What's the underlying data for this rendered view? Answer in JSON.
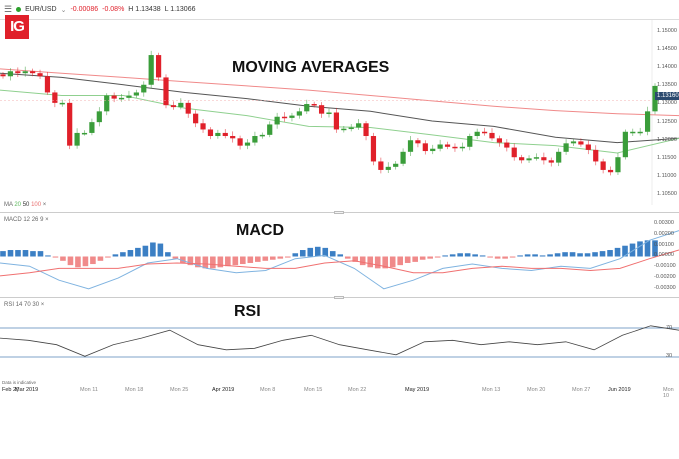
{
  "header": {
    "symbol": "EUR/USD",
    "change": "-0.00086",
    "change_pct": "-0.08%",
    "high": "H 1.13438",
    "low": "L 1.13066",
    "menu_icon": "hamburger-icon",
    "status_color": "#2ca02c"
  },
  "logo": "IG",
  "titles": {
    "ma": "MOVING AVERAGES",
    "macd": "MACD",
    "rsi": "RSI"
  },
  "legends": {
    "ma": {
      "label": "MA",
      "p1": "20",
      "p2": "50",
      "p3": "100",
      "close": "×"
    },
    "macd": {
      "label": "MACD",
      "p1": "12",
      "p2": "26",
      "p3": "9",
      "close": "×"
    },
    "rsi": {
      "label": "RSI",
      "p1": "14",
      "p2": "70",
      "p3": "30",
      "close": "×"
    }
  },
  "price_axis": [
    "1.15000",
    "1.14500",
    "1.14000",
    "1.13500",
    "1.13000",
    "1.12500",
    "1.12000",
    "1.11500",
    "1.11000",
    "1.10500"
  ],
  "current_price": "1.13160",
  "macd_axis": [
    "0.00300",
    "0.00200",
    "0.00100",
    "0.00000",
    "-0.00100",
    "-0.00200",
    "-0.00300"
  ],
  "rsi_axis": [
    "70",
    "30"
  ],
  "footer": {
    "note": "Data is indicative",
    "dates": [
      "Feb 2(",
      "Mar 2019",
      "Mon 11",
      "Mon 18",
      "Mon 25",
      "Apr 2019",
      "Mon 8",
      "Mon 15",
      "Mon 22",
      "May 2019",
      "Mon 13",
      "Mon 20",
      "Mon 27",
      "Jun 2019",
      "Mon 10"
    ]
  },
  "colors": {
    "up": "#3a9d3a",
    "down": "#e0202a",
    "ma20": "#8fd08f",
    "ma50": "#555555",
    "ma100": "#f08a8a",
    "hist_pos": "#3b7fc4",
    "hist_neg": "#f08a8a",
    "macd": "#7fb3e0",
    "signal": "#f07070",
    "rsi": "#444444",
    "rsi_lines": "#7fa3c8"
  },
  "chart_data": {
    "type": "candlestick",
    "price_range": [
      1.1045,
      1.1525
    ],
    "closes": [
      1.1379,
      1.1392,
      1.1387,
      1.1392,
      1.1387,
      1.1379,
      1.1337,
      1.131,
      1.131,
      1.1199,
      1.1232,
      1.1232,
      1.126,
      1.1288,
      1.1329,
      1.1321,
      1.1323,
      1.1329,
      1.1337,
      1.1357,
      1.1434,
      1.1376,
      1.1304,
      1.1299,
      1.131,
      1.1282,
      1.1257,
      1.1241,
      1.1224,
      1.1232,
      1.1224,
      1.1218,
      1.1199,
      1.1207,
      1.1224,
      1.1227,
      1.1254,
      1.1274,
      1.1271,
      1.1277,
      1.1288,
      1.1307,
      1.1304,
      1.1282,
      1.1285,
      1.1241,
      1.1243,
      1.1246,
      1.1257,
      1.1224,
      1.1158,
      1.1136,
      1.1144,
      1.1152,
      1.1183,
      1.1213,
      1.1205,
      1.1185,
      1.1191,
      1.1202,
      1.1196,
      1.1194,
      1.1196,
      1.1224,
      1.1235,
      1.1232,
      1.1218,
      1.1207,
      1.1194,
      1.1169,
      1.1161,
      1.1166,
      1.1169,
      1.1161,
      1.1155,
      1.1183,
      1.1205,
      1.121,
      1.1202,
      1.1188,
      1.1158,
      1.1136,
      1.113,
      1.1169,
      1.1235,
      1.1235,
      1.1235,
      1.1288,
      1.1354
    ],
    "ma20": [
      1.1343,
      1.1329,
      1.1329,
      1.1296,
      1.1277,
      1.1249,
      1.1246,
      1.1227,
      1.1207,
      1.1199,
      1.118,
      1.1218
    ],
    "ma50": [
      1.1387,
      1.1376,
      1.1357,
      1.1337,
      1.1321,
      1.1301,
      1.1288,
      1.1263,
      1.1249,
      1.1221,
      1.1207,
      1.1218
    ],
    "ma100": [
      1.1398,
      1.1387,
      1.1376,
      1.1365,
      1.1354,
      1.1343,
      1.1329,
      1.1315,
      1.1301,
      1.129,
      1.1282,
      1.1277
    ],
    "macd_range": [
      -0.0032,
      0.0032
    ],
    "macd_hist": [
      0.0005,
      0.0006,
      0.0006,
      0.0006,
      0.0005,
      0.0005,
      0.0001,
      -0.0001,
      -0.0004,
      -0.0008,
      -0.001,
      -0.0009,
      -0.0007,
      -0.0004,
      -0.0001,
      0.0002,
      0.0004,
      0.0006,
      0.0008,
      0.001,
      0.0013,
      0.0012,
      0.0004,
      -0.0002,
      -0.0006,
      -0.0008,
      -0.001,
      -0.0011,
      -0.0011,
      -0.001,
      -0.0009,
      -0.0008,
      -0.0007,
      -0.0006,
      -0.0005,
      -0.0004,
      -0.0003,
      -0.0002,
      -0.0001,
      0.0003,
      0.0006,
      0.0008,
      0.0009,
      0.0008,
      0.0005,
      0.0002,
      -0.0002,
      -0.0005,
      -0.0008,
      -0.001,
      -0.0011,
      -0.0011,
      -0.001,
      -0.0008,
      -0.0006,
      -0.0005,
      -0.0003,
      -0.0002,
      -0.0001,
      0.0001,
      0.0002,
      0.0003,
      0.0003,
      0.0002,
      0.0001,
      -0.0001,
      -0.0002,
      -0.0002,
      -0.0001,
      0.0001,
      0.0002,
      0.0002,
      0.0001,
      0.0002,
      0.0003,
      0.0004,
      0.0004,
      0.0003,
      0.0003,
      0.0004,
      0.0005,
      0.0006,
      0.0008,
      0.001,
      0.0012,
      0.0014,
      0.0015,
      0.0015
    ],
    "macd_line": [
      -0.0006,
      -0.0009,
      -0.0022,
      -0.003,
      -0.002,
      -0.0006,
      -0.0002,
      -0.0011,
      -0.0015,
      -0.0013,
      -0.0002,
      0.0001,
      -0.0011,
      -0.003,
      -0.0022,
      -0.0011,
      -0.0007,
      -0.0011,
      -0.0013,
      -0.0009,
      -0.0011,
      -0.0002,
      0.0015,
      0.0024
    ],
    "signal_line": [
      -0.0018,
      -0.0015,
      -0.0011,
      -0.0011,
      -0.0011,
      -0.0007,
      -0.0006,
      -0.0007,
      -0.0009,
      -0.0011,
      -0.0011,
      -0.0006,
      -0.0004,
      -0.0009,
      -0.0015,
      -0.0015,
      -0.0011,
      -0.0009,
      -0.0011,
      -0.0011,
      -0.0013,
      -0.0011,
      -0.0002,
      0.0006
    ],
    "rsi": [
      56,
      53,
      47,
      31,
      47,
      56,
      67,
      47,
      40,
      42,
      53,
      60,
      47,
      40,
      33,
      51,
      53,
      47,
      51,
      47,
      51,
      40,
      60,
      73,
      67
    ],
    "rsi_levels": [
      70,
      30
    ]
  }
}
